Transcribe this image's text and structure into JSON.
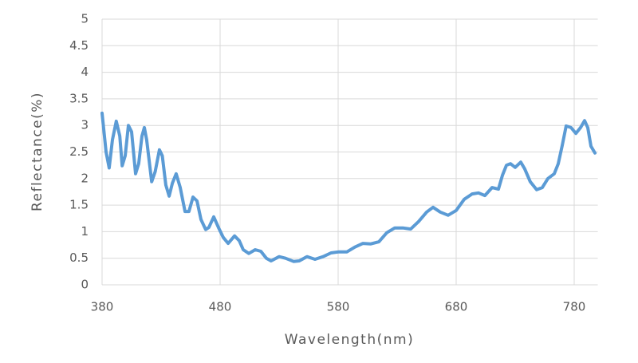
{
  "chart_data": {
    "type": "line",
    "x_label": "Wavelength(nm)",
    "y_label": "Reflectance(%)",
    "x": [
      380,
      383.4,
      386,
      388.8,
      392,
      395,
      397,
      399.6,
      402.3,
      405,
      408.4,
      411,
      413.8,
      415.8,
      417.8,
      422,
      425,
      428.6,
      431,
      434,
      436.8,
      439.5,
      442.8,
      446.2,
      450.3,
      453.6,
      457,
      460.4,
      463.8,
      467.8,
      470.5,
      474.6,
      478.6,
      482.7,
      486.8,
      492.2,
      496.2,
      499.6,
      504.3,
      509.7,
      514.5,
      519.2,
      523.2,
      530,
      535.4,
      542.2,
      547,
      553.6,
      560.4,
      567.2,
      574,
      580.7,
      587.4,
      594.2,
      601,
      607.7,
      614.5,
      621.2,
      628,
      634.7,
      641.5,
      648.2,
      655,
      660.4,
      666.5,
      673.2,
      680,
      686.8,
      693.5,
      698.9,
      704.3,
      710.4,
      715.8,
      719.2,
      722.6,
      726,
      730,
      734.7,
      738.1,
      742.8,
      748.2,
      753,
      757.7,
      763.1,
      766.5,
      769.9,
      773.2,
      777.3,
      781.4,
      785.4,
      788.8,
      791.5,
      794.2,
      797.6
    ],
    "series": [
      {
        "name": "Reflectance",
        "color": "#5b9bd5",
        "values": [
          3.23,
          2.5,
          2.2,
          2.73,
          3.08,
          2.8,
          2.24,
          2.43,
          3.0,
          2.88,
          2.09,
          2.28,
          2.8,
          2.96,
          2.73,
          1.94,
          2.13,
          2.54,
          2.43,
          1.88,
          1.67,
          1.91,
          2.09,
          1.83,
          1.38,
          1.38,
          1.65,
          1.58,
          1.23,
          1.04,
          1.08,
          1.28,
          1.08,
          0.89,
          0.78,
          0.92,
          0.83,
          0.66,
          0.59,
          0.66,
          0.63,
          0.5,
          0.45,
          0.53,
          0.5,
          0.44,
          0.45,
          0.53,
          0.48,
          0.53,
          0.6,
          0.62,
          0.62,
          0.71,
          0.78,
          0.77,
          0.81,
          0.98,
          1.07,
          1.07,
          1.05,
          1.19,
          1.37,
          1.46,
          1.37,
          1.31,
          1.4,
          1.61,
          1.71,
          1.73,
          1.68,
          1.83,
          1.8,
          2.06,
          2.25,
          2.28,
          2.21,
          2.31,
          2.18,
          1.94,
          1.79,
          1.83,
          2.0,
          2.09,
          2.28,
          2.63,
          2.99,
          2.96,
          2.85,
          2.96,
          3.09,
          2.96,
          2.61,
          2.48
        ]
      }
    ],
    "xlim": [
      380,
      800
    ],
    "xticks": [
      380,
      480,
      580,
      680,
      780
    ],
    "ylim": [
      0,
      5
    ],
    "yticks": [
      0,
      0.5,
      1,
      1.5,
      2,
      2.5,
      3,
      3.5,
      4,
      4.5,
      5
    ],
    "grid": true
  }
}
